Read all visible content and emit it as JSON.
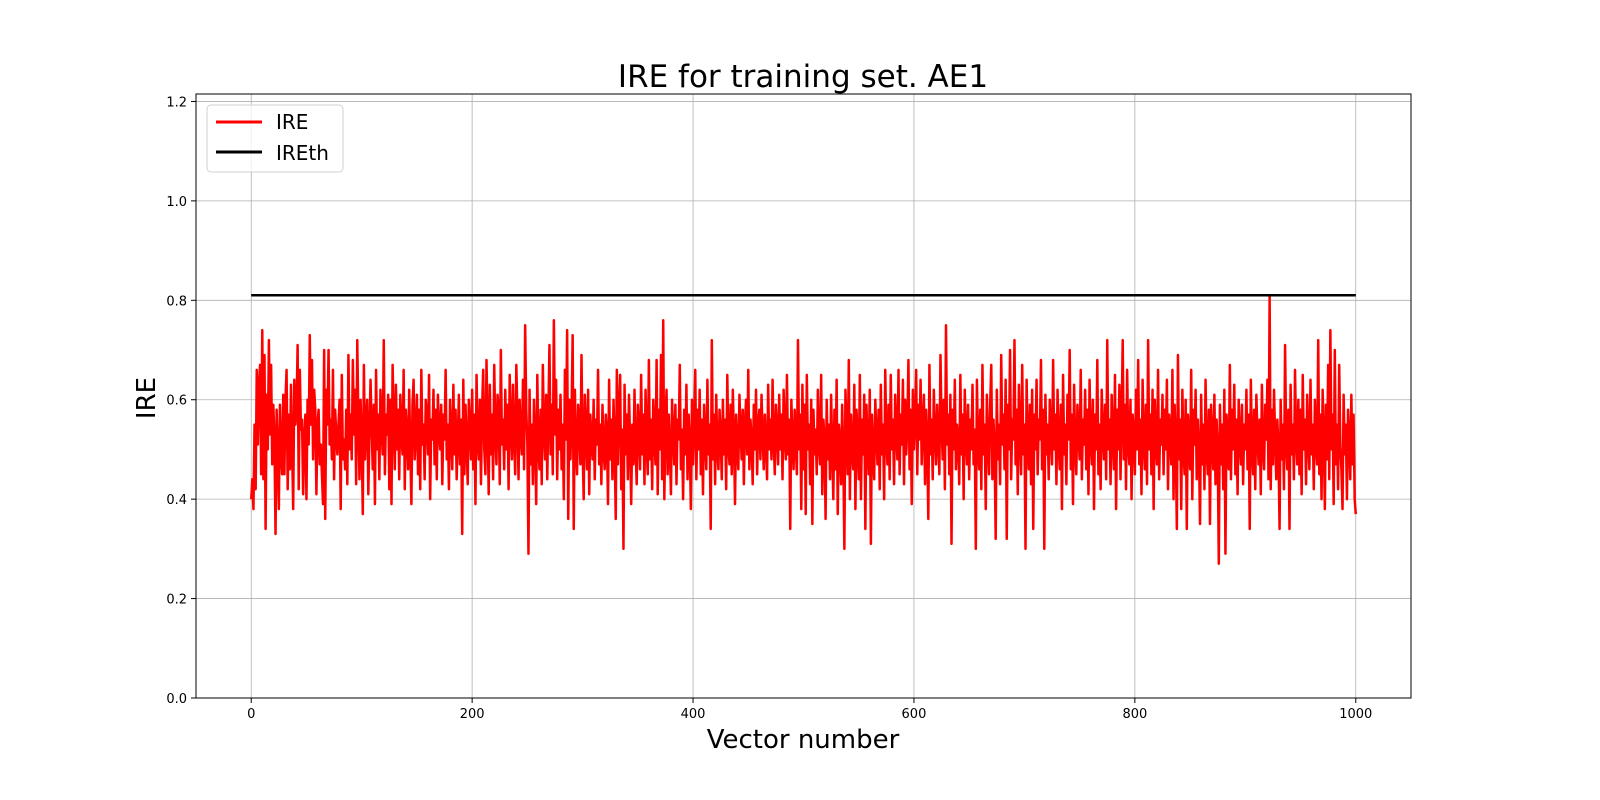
{
  "chart_data": {
    "type": "line",
    "title": "IRE for training set. AE1",
    "xlabel": "Vector number",
    "ylabel": "IRE",
    "xlim": [
      -50,
      1050
    ],
    "ylim": [
      0,
      1.215
    ],
    "xticks": [
      0,
      200,
      400,
      600,
      800,
      1000
    ],
    "yticks": [
      0.0,
      0.2,
      0.4,
      0.6,
      0.8,
      1.0,
      1.2
    ],
    "ytick_labels": [
      "0.0",
      "0.2",
      "0.4",
      "0.6",
      "0.8",
      "1.0",
      "1.2"
    ],
    "grid": true,
    "legend_placement": "upper-left",
    "series": [
      {
        "name": "IRE",
        "color": "#ff0000",
        "x_start": 0,
        "x_end": 1000,
        "values": [
          0.4,
          0.44,
          0.38,
          0.55,
          0.42,
          0.66,
          0.51,
          0.63,
          0.67,
          0.45,
          0.74,
          0.44,
          0.69,
          0.34,
          0.61,
          0.5,
          0.72,
          0.53,
          0.67,
          0.47,
          0.59,
          0.52,
          0.33,
          0.58,
          0.5,
          0.38,
          0.59,
          0.49,
          0.45,
          0.61,
          0.45,
          0.6,
          0.66,
          0.42,
          0.57,
          0.46,
          0.63,
          0.5,
          0.38,
          0.64,
          0.55,
          0.58,
          0.71,
          0.42,
          0.66,
          0.54,
          0.56,
          0.41,
          0.52,
          0.57,
          0.4,
          0.6,
          0.51,
          0.73,
          0.55,
          0.68,
          0.48,
          0.62,
          0.58,
          0.41,
          0.55,
          0.58,
          0.47,
          0.51,
          0.45,
          0.39,
          0.7,
          0.36,
          0.62,
          0.55,
          0.7,
          0.51,
          0.56,
          0.48,
          0.66,
          0.44,
          0.58,
          0.53,
          0.49,
          0.55,
          0.6,
          0.38,
          0.65,
          0.48,
          0.52,
          0.46,
          0.58,
          0.43,
          0.69,
          0.5,
          0.57,
          0.48,
          0.68,
          0.53,
          0.62,
          0.43,
          0.72,
          0.56,
          0.44,
          0.6,
          0.52,
          0.37,
          0.67,
          0.48,
          0.56,
          0.6,
          0.41,
          0.53,
          0.64,
          0.55,
          0.46,
          0.59,
          0.39,
          0.66,
          0.5,
          0.57,
          0.44,
          0.62,
          0.55,
          0.49,
          0.72,
          0.45,
          0.57,
          0.53,
          0.61,
          0.42,
          0.6,
          0.39,
          0.67,
          0.56,
          0.46,
          0.63,
          0.5,
          0.58,
          0.44,
          0.61,
          0.53,
          0.49,
          0.66,
          0.42,
          0.58,
          0.53,
          0.46,
          0.62,
          0.5,
          0.39,
          0.59,
          0.64,
          0.48,
          0.53,
          0.61,
          0.45,
          0.58,
          0.42,
          0.66,
          0.51,
          0.55,
          0.44,
          0.6,
          0.57,
          0.49,
          0.65,
          0.4,
          0.56,
          0.52,
          0.62,
          0.47,
          0.58,
          0.44,
          0.61,
          0.54,
          0.5,
          0.59,
          0.43,
          0.57,
          0.52,
          0.66,
          0.48,
          0.55,
          0.42,
          0.6,
          0.53,
          0.46,
          0.63,
          0.49,
          0.58,
          0.44,
          0.52,
          0.61,
          0.47,
          0.56,
          0.33,
          0.64,
          0.45,
          0.59,
          0.51,
          0.43,
          0.6,
          0.55,
          0.48,
          0.62,
          0.46,
          0.57,
          0.39,
          0.65,
          0.52,
          0.48,
          0.6,
          0.43,
          0.58,
          0.66,
          0.5,
          0.45,
          0.68,
          0.55,
          0.41,
          0.63,
          0.49,
          0.57,
          0.44,
          0.67,
          0.53,
          0.47,
          0.61,
          0.58,
          0.43,
          0.7,
          0.51,
          0.56,
          0.46,
          0.62,
          0.5,
          0.59,
          0.42,
          0.65,
          0.55,
          0.48,
          0.63,
          0.52,
          0.45,
          0.67,
          0.57,
          0.44,
          0.6,
          0.53,
          0.49,
          0.64,
          0.46,
          0.75,
          0.58,
          0.51,
          0.29,
          0.62,
          0.47,
          0.55,
          0.43,
          0.6,
          0.52,
          0.39,
          0.65,
          0.5,
          0.46,
          0.58,
          0.43,
          0.67,
          0.54,
          0.48,
          0.61,
          0.44,
          0.57,
          0.71,
          0.49,
          0.59,
          0.45,
          0.76,
          0.53,
          0.64,
          0.44,
          0.58,
          0.5,
          0.61,
          0.46,
          0.55,
          0.4,
          0.66,
          0.52,
          0.74,
          0.36,
          0.6,
          0.48,
          0.57,
          0.73,
          0.34,
          0.62,
          0.51,
          0.45,
          0.59,
          0.55,
          0.47,
          0.69,
          0.5,
          0.4,
          0.61,
          0.54,
          0.46,
          0.62,
          0.41,
          0.57,
          0.52,
          0.48,
          0.6,
          0.44,
          0.56,
          0.51,
          0.66,
          0.47,
          0.55,
          0.43,
          0.59,
          0.5,
          0.46,
          0.57,
          0.53,
          0.39,
          0.64,
          0.48,
          0.56,
          0.44,
          0.6,
          0.51,
          0.36,
          0.66,
          0.47,
          0.58,
          0.65,
          0.42,
          0.54,
          0.3,
          0.63,
          0.49,
          0.57,
          0.44,
          0.61,
          0.52,
          0.39,
          0.55,
          0.47,
          0.62,
          0.5,
          0.43,
          0.59,
          0.54,
          0.46,
          0.65,
          0.49,
          0.57,
          0.43,
          0.62,
          0.51,
          0.45,
          0.68,
          0.48,
          0.56,
          0.42,
          0.6,
          0.53,
          0.47,
          0.68,
          0.41,
          0.58,
          0.5,
          0.69,
          0.44,
          0.76,
          0.4,
          0.55,
          0.62,
          0.45,
          0.57,
          0.5,
          0.41,
          0.6,
          0.53,
          0.47,
          0.59,
          0.43,
          0.56,
          0.52,
          0.67,
          0.46,
          0.54,
          0.4,
          0.58,
          0.49,
          0.63,
          0.44,
          0.57,
          0.51,
          0.38,
          0.6,
          0.47,
          0.55,
          0.66,
          0.44,
          0.58,
          0.5,
          0.62,
          0.45,
          0.56,
          0.41,
          0.59,
          0.52,
          0.46,
          0.64,
          0.49,
          0.55,
          0.34,
          0.72,
          0.48,
          0.57,
          0.43,
          0.61,
          0.5,
          0.46,
          0.58,
          0.53,
          0.44,
          0.6,
          0.49,
          0.56,
          0.42,
          0.65,
          0.51,
          0.47,
          0.59,
          0.45,
          0.62,
          0.53,
          0.39,
          0.57,
          0.5,
          0.46,
          0.61,
          0.54,
          0.48,
          0.58,
          0.43,
          0.55,
          0.6,
          0.49,
          0.66,
          0.46,
          0.56,
          0.52,
          0.43,
          0.59,
          0.5,
          0.62,
          0.45,
          0.55,
          0.58,
          0.48,
          0.61,
          0.53,
          0.46,
          0.57,
          0.51,
          0.44,
          0.63,
          0.5,
          0.56,
          0.48,
          0.64,
          0.52,
          0.45,
          0.59,
          0.54,
          0.47,
          0.61,
          0.5,
          0.57,
          0.44,
          0.62,
          0.53,
          0.48,
          0.65,
          0.49,
          0.56,
          0.34,
          0.6,
          0.52,
          0.46,
          0.58,
          0.51,
          0.45,
          0.72,
          0.5,
          0.57,
          0.38,
          0.63,
          0.46,
          0.59,
          0.37,
          0.65,
          0.5,
          0.55,
          0.43,
          0.6,
          0.35,
          0.58,
          0.49,
          0.54,
          0.45,
          0.62,
          0.51,
          0.47,
          0.65,
          0.41,
          0.56,
          0.52,
          0.36,
          0.6,
          0.48,
          0.55,
          0.44,
          0.61,
          0.5,
          0.4,
          0.58,
          0.46,
          0.64,
          0.37,
          0.55,
          0.52,
          0.43,
          0.59,
          0.49,
          0.3,
          0.62,
          0.54,
          0.45,
          0.68,
          0.4,
          0.57,
          0.5,
          0.46,
          0.63,
          0.38,
          0.58,
          0.52,
          0.44,
          0.65,
          0.4,
          0.56,
          0.49,
          0.61,
          0.34,
          0.59,
          0.51,
          0.45,
          0.62,
          0.31,
          0.57,
          0.5,
          0.44,
          0.6,
          0.53,
          0.47,
          0.58,
          0.42,
          0.63,
          0.49,
          0.55,
          0.4,
          0.66,
          0.52,
          0.47,
          0.59,
          0.44,
          0.65,
          0.5,
          0.56,
          0.43,
          0.61,
          0.53,
          0.48,
          0.66,
          0.45,
          0.57,
          0.51,
          0.64,
          0.43,
          0.6,
          0.49,
          0.55,
          0.68,
          0.46,
          0.58,
          0.39,
          0.62,
          0.5,
          0.56,
          0.66,
          0.45,
          0.59,
          0.52,
          0.64,
          0.47,
          0.55,
          0.61,
          0.43,
          0.58,
          0.51,
          0.36,
          0.67,
          0.49,
          0.56,
          0.44,
          0.62,
          0.53,
          0.47,
          0.59,
          0.52,
          0.45,
          0.69,
          0.55,
          0.48,
          0.6,
          0.42,
          0.75,
          0.51,
          0.57,
          0.45,
          0.61,
          0.31,
          0.58,
          0.5,
          0.64,
          0.46,
          0.55,
          0.52,
          0.43,
          0.65,
          0.49,
          0.57,
          0.4,
          0.62,
          0.53,
          0.47,
          0.59,
          0.44,
          0.56,
          0.5,
          0.63,
          0.47,
          0.54,
          0.3,
          0.64,
          0.51,
          0.46,
          0.58,
          0.42,
          0.67,
          0.49,
          0.55,
          0.38,
          0.61,
          0.52,
          0.45,
          0.59,
          0.67,
          0.44,
          0.56,
          0.5,
          0.32,
          0.62,
          0.48,
          0.55,
          0.43,
          0.69,
          0.51,
          0.57,
          0.46,
          0.64,
          0.32,
          0.59,
          0.5,
          0.7,
          0.44,
          0.56,
          0.52,
          0.72,
          0.47,
          0.58,
          0.41,
          0.63,
          0.53,
          0.45,
          0.67,
          0.49,
          0.55,
          0.3,
          0.64,
          0.51,
          0.46,
          0.59,
          0.43,
          0.62,
          0.34,
          0.57,
          0.5,
          0.64,
          0.45,
          0.56,
          0.52,
          0.68,
          0.46,
          0.58,
          0.3,
          0.61,
          0.49,
          0.55,
          0.44,
          0.6,
          0.53,
          0.47,
          0.68,
          0.5,
          0.57,
          0.43,
          0.62,
          0.51,
          0.46,
          0.59,
          0.38,
          0.65,
          0.49,
          0.55,
          0.43,
          0.61,
          0.52,
          0.7,
          0.46,
          0.57,
          0.39,
          0.63,
          0.5,
          0.45,
          0.59,
          0.53,
          0.48,
          0.66,
          0.44,
          0.56,
          0.51,
          0.62,
          0.46,
          0.58,
          0.41,
          0.64,
          0.52,
          0.47,
          0.6,
          0.38,
          0.57,
          0.5,
          0.68,
          0.45,
          0.55,
          0.42,
          0.62,
          0.53,
          0.48,
          0.59,
          0.44,
          0.72,
          0.5,
          0.56,
          0.43,
          0.61,
          0.52,
          0.46,
          0.65,
          0.38,
          0.58,
          0.5,
          0.63,
          0.44,
          0.56,
          0.72,
          0.48,
          0.59,
          0.42,
          0.66,
          0.51,
          0.47,
          0.6,
          0.4,
          0.57,
          0.53,
          0.45,
          0.62,
          0.5,
          0.68,
          0.47,
          0.56,
          0.41,
          0.64,
          0.52,
          0.46,
          0.59,
          0.43,
          0.72,
          0.5,
          0.57,
          0.45,
          0.62,
          0.38,
          0.6,
          0.52,
          0.47,
          0.66,
          0.44,
          0.56,
          0.51,
          0.61,
          0.45,
          0.58,
          0.5,
          0.64,
          0.42,
          0.57,
          0.53,
          0.47,
          0.66,
          0.4,
          0.59,
          0.51,
          0.34,
          0.69,
          0.48,
          0.56,
          0.38,
          0.62,
          0.5,
          0.45,
          0.6,
          0.34,
          0.57,
          0.52,
          0.46,
          0.66,
          0.4,
          0.58,
          0.51,
          0.62,
          0.44,
          0.56,
          0.5,
          0.35,
          0.61,
          0.47,
          0.55,
          0.42,
          0.64,
          0.5,
          0.45,
          0.58,
          0.35,
          0.59,
          0.52,
          0.46,
          0.61,
          0.43,
          0.56,
          0.5,
          0.27,
          0.59,
          0.47,
          0.55,
          0.42,
          0.62,
          0.29,
          0.57,
          0.51,
          0.46,
          0.67,
          0.44,
          0.58,
          0.5,
          0.63,
          0.45,
          0.56,
          0.41,
          0.6,
          0.52,
          0.47,
          0.59,
          0.43,
          0.55,
          0.5,
          0.62,
          0.46,
          0.57,
          0.34,
          0.64,
          0.51,
          0.45,
          0.58,
          0.42,
          0.61,
          0.53,
          0.47,
          0.56,
          0.41,
          0.63,
          0.5,
          0.46,
          0.59,
          0.52,
          0.64,
          0.44,
          0.81,
          0.42,
          0.58,
          0.47,
          0.62,
          0.52,
          0.44,
          0.56,
          0.5,
          0.34,
          0.6,
          0.48,
          0.55,
          0.42,
          0.71,
          0.51,
          0.46,
          0.58,
          0.34,
          0.63,
          0.49,
          0.55,
          0.44,
          0.66,
          0.52,
          0.47,
          0.6,
          0.45,
          0.58,
          0.41,
          0.65,
          0.5,
          0.56,
          0.43,
          0.61,
          0.52,
          0.46,
          0.64,
          0.49,
          0.55,
          0.42,
          0.6,
          0.51,
          0.47,
          0.72,
          0.45,
          0.57,
          0.4,
          0.62,
          0.53,
          0.38,
          0.59,
          0.48,
          0.67,
          0.44,
          0.74,
          0.5,
          0.57,
          0.39,
          0.7,
          0.47,
          0.55,
          0.42,
          0.67,
          0.51,
          0.46,
          0.38,
          0.61,
          0.49,
          0.55,
          0.4,
          0.58,
          0.52,
          0.44,
          0.61,
          0.47,
          0.57,
          0.4,
          0.37
        ]
      },
      {
        "name": "IREth",
        "color": "#000000",
        "x": [
          0,
          1000
        ],
        "values": [
          0.81,
          0.81
        ]
      }
    ]
  }
}
